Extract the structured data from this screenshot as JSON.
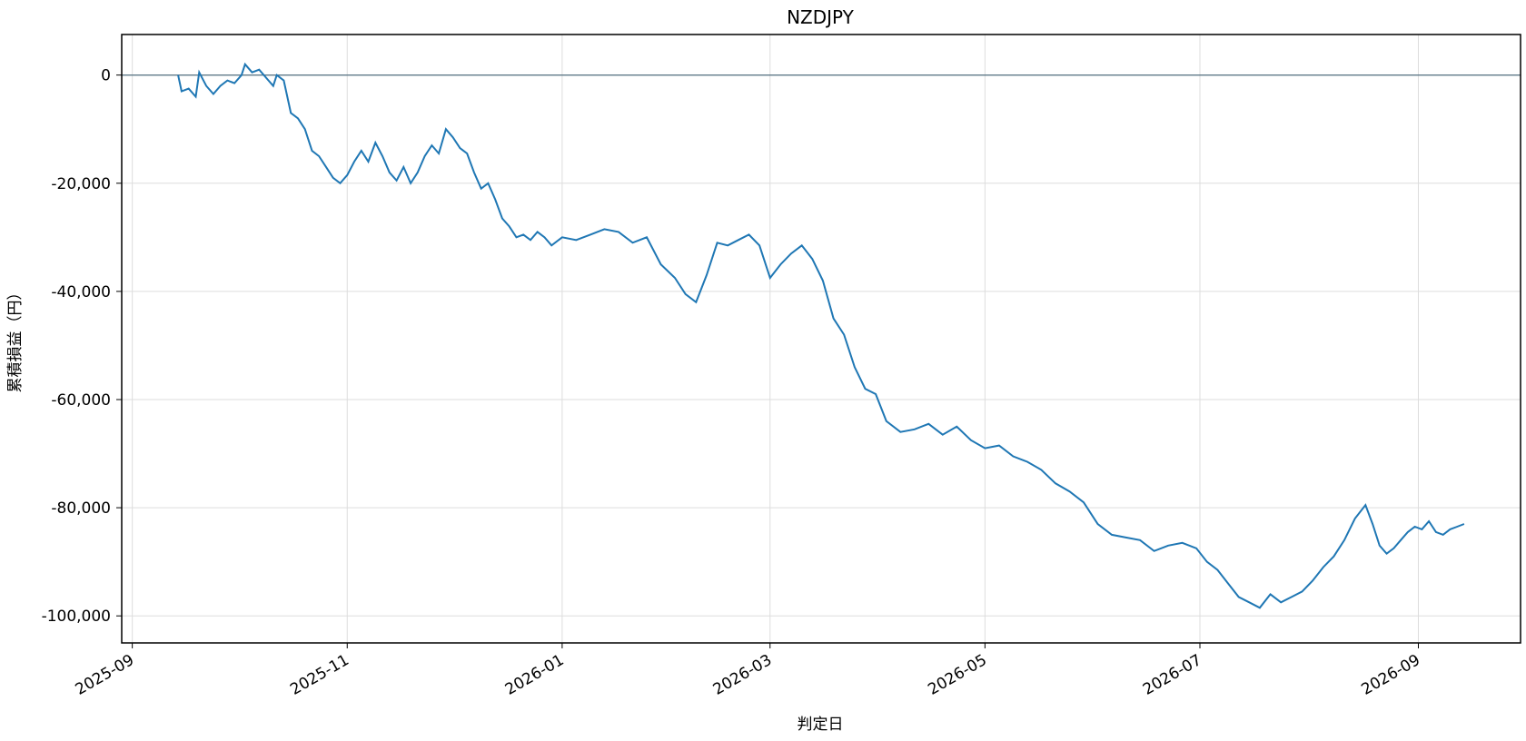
{
  "chart_data": {
    "type": "line",
    "title": "NZDJPY",
    "xlabel": "判定日",
    "ylabel": "累積損益（円）",
    "x_ticks": [
      "2025-09",
      "2025-11",
      "2026-01",
      "2026-03",
      "2026-05",
      "2026-07",
      "2026-09"
    ],
    "y_ticks": [
      0,
      -20000,
      -40000,
      -60000,
      -80000,
      -100000
    ],
    "y_tick_labels": [
      "0",
      "-20,000",
      "-40,000",
      "-60,000",
      "-80,000",
      "-100,000"
    ],
    "xlim": [
      "2025-08-29",
      "2026-09-30"
    ],
    "ylim": [
      -105000,
      7500
    ],
    "grid": true,
    "reference_line": 0,
    "colors": {
      "line": "#1f77b4",
      "grid": "#dddddd",
      "zero_line": "#5f7a89"
    },
    "series": [
      {
        "x": [
          "2025-09-14",
          "2025-09-15",
          "2025-09-17",
          "2025-09-19",
          "2025-09-20",
          "2025-09-22",
          "2025-09-24",
          "2025-09-26",
          "2025-09-28",
          "2025-09-30",
          "2025-10-02",
          "2025-10-03",
          "2025-10-05",
          "2025-10-07",
          "2025-10-09",
          "2025-10-11",
          "2025-10-12",
          "2025-10-14",
          "2025-10-16",
          "2025-10-18",
          "2025-10-20",
          "2025-10-22",
          "2025-10-24",
          "2025-10-26",
          "2025-10-28",
          "2025-10-30",
          "2025-11-01",
          "2025-11-03",
          "2025-11-05",
          "2025-11-07",
          "2025-11-09",
          "2025-11-11",
          "2025-11-13",
          "2025-11-15",
          "2025-11-17",
          "2025-11-19",
          "2025-11-21",
          "2025-11-23",
          "2025-11-25",
          "2025-11-27",
          "2025-11-29",
          "2025-12-01",
          "2025-12-03",
          "2025-12-05",
          "2025-12-07",
          "2025-12-09",
          "2025-12-11",
          "2025-12-13",
          "2025-12-15",
          "2025-12-17",
          "2025-12-19",
          "2025-12-21",
          "2025-12-23",
          "2025-12-25",
          "2025-12-27",
          "2025-12-29",
          "2026-01-01",
          "2026-01-05",
          "2026-01-09",
          "2026-01-13",
          "2026-01-17",
          "2026-01-21",
          "2026-01-25",
          "2026-01-29",
          "2026-02-02",
          "2026-02-05",
          "2026-02-08",
          "2026-02-11",
          "2026-02-14",
          "2026-02-17",
          "2026-02-20",
          "2026-02-23",
          "2026-02-26",
          "2026-03-01",
          "2026-03-04",
          "2026-03-07",
          "2026-03-10",
          "2026-03-13",
          "2026-03-16",
          "2026-03-19",
          "2026-03-22",
          "2026-03-25",
          "2026-03-28",
          "2026-03-31",
          "2026-04-03",
          "2026-04-07",
          "2026-04-11",
          "2026-04-15",
          "2026-04-19",
          "2026-04-23",
          "2026-04-27",
          "2026-05-01",
          "2026-05-05",
          "2026-05-09",
          "2026-05-13",
          "2026-05-17",
          "2026-05-21",
          "2026-05-25",
          "2026-05-29",
          "2026-06-02",
          "2026-06-06",
          "2026-06-10",
          "2026-06-14",
          "2026-06-18",
          "2026-06-22",
          "2026-06-26",
          "2026-06-30",
          "2026-07-03",
          "2026-07-06",
          "2026-07-09",
          "2026-07-12",
          "2026-07-15",
          "2026-07-18",
          "2026-07-21",
          "2026-07-24",
          "2026-07-27",
          "2026-07-30",
          "2026-08-02",
          "2026-08-05",
          "2026-08-08",
          "2026-08-11",
          "2026-08-14",
          "2026-08-17",
          "2026-08-19",
          "2026-08-21",
          "2026-08-23",
          "2026-08-25",
          "2026-08-27",
          "2026-08-29",
          "2026-08-31",
          "2026-09-02",
          "2026-09-04",
          "2026-09-06",
          "2026-09-08",
          "2026-09-10",
          "2026-09-12",
          "2026-09-14"
        ],
        "y": [
          0,
          -3000,
          -2500,
          -4000,
          500,
          -2000,
          -3500,
          -2000,
          -1000,
          -1500,
          0,
          2000,
          500,
          1000,
          -500,
          -2000,
          0,
          -1000,
          -7000,
          -8000,
          -10000,
          -14000,
          -15000,
          -17000,
          -19000,
          -20000,
          -18500,
          -16000,
          -14000,
          -16000,
          -12500,
          -15000,
          -18000,
          -19500,
          -17000,
          -20000,
          -18000,
          -15000,
          -13000,
          -14500,
          -10000,
          -11500,
          -13500,
          -14500,
          -18000,
          -21000,
          -20000,
          -23000,
          -26500,
          -28000,
          -30000,
          -29500,
          -30500,
          -29000,
          -30000,
          -31500,
          -30000,
          -30500,
          -29500,
          -28500,
          -29000,
          -31000,
          -30000,
          -35000,
          -37500,
          -40500,
          -42000,
          -37000,
          -31000,
          -31500,
          -30500,
          -29500,
          -31500,
          -37500,
          -35000,
          -33000,
          -31500,
          -34000,
          -38000,
          -45000,
          -48000,
          -54000,
          -58000,
          -59000,
          -64000,
          -66000,
          -65500,
          -64500,
          -66500,
          -65000,
          -67500,
          -69000,
          -68500,
          -70500,
          -71500,
          -73000,
          -75500,
          -77000,
          -79000,
          -83000,
          -85000,
          -85500,
          -86000,
          -88000,
          -87000,
          -86500,
          -87500,
          -90000,
          -91500,
          -94000,
          -96500,
          -97500,
          -98500,
          -96000,
          -97500,
          -96500,
          -95500,
          -93500,
          -91000,
          -89000,
          -86000,
          -82000,
          -79500,
          -83000,
          -87000,
          -88500,
          -87500,
          -86000,
          -84500,
          -83500,
          -84000,
          -82500,
          -84500,
          -85000,
          -84000,
          -83500,
          -83000
        ]
      }
    ]
  }
}
